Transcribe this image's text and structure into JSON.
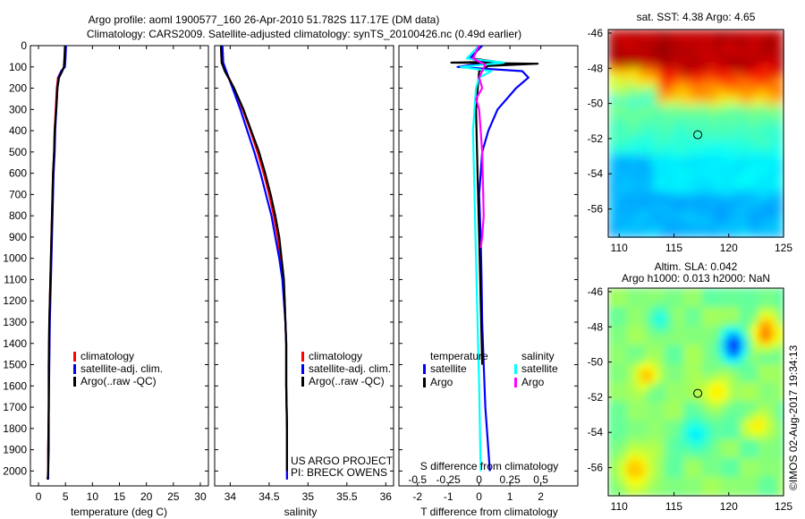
{
  "title_line1": "Argo profile: aoml 1900577_160 26-Apr-2010 51.782S 117.17E (DM data)",
  "title_line2": "Climatology: CARS2009. Satellite-adjusted climatology: synTS_20100426.nc (0.49d earlier)",
  "credit_line1": "US ARGO PROJECT",
  "credit_line2": "PI: BRECK OWENS",
  "imos_stamp": "©IMOS 02-Aug-2017 19:34:13",
  "colors": {
    "climatology": "#ff0000",
    "satellite": "#0000ff",
    "argo": "#000000",
    "salinity_satellite": "#00ffff",
    "salinity_argo": "#ff00ff"
  },
  "chart_data": [
    {
      "type": "line",
      "xlabel": "temperature (deg C)",
      "ylabel": "",
      "xlim": [
        -1.5,
        31.5
      ],
      "ylim": [
        0,
        2070
      ],
      "y_inverted": true,
      "xticks": [
        0,
        5,
        10,
        15,
        20,
        25,
        30
      ],
      "yticks": [
        0,
        100,
        200,
        300,
        400,
        500,
        600,
        700,
        800,
        900,
        1000,
        1100,
        1200,
        1300,
        1400,
        1500,
        1600,
        1700,
        1800,
        1900,
        2000
      ],
      "legend_position": "center-left",
      "series": [
        {
          "name": "climatology",
          "color": "#ff0000",
          "x": [
            5.0,
            4.9,
            4.8,
            4.2,
            3.6,
            3.4,
            3.2,
            3.0,
            2.9,
            2.7,
            2.6,
            2.5,
            2.4,
            2.3,
            2.2,
            2.1,
            2.0,
            1.9,
            1.9,
            1.8,
            1.8,
            1.7
          ],
          "y": [
            0,
            60,
            100,
            120,
            150,
            200,
            300,
            400,
            500,
            600,
            700,
            800,
            900,
            1000,
            1100,
            1200,
            1300,
            1500,
            1700,
            1900,
            2000,
            2040
          ]
        },
        {
          "name": "satellite-adj. clim.",
          "color": "#0000ff",
          "x": [
            5.1,
            5.0,
            4.9,
            4.2,
            3.7,
            3.5,
            3.3,
            3.1,
            3.0,
            2.8,
            2.7,
            2.6,
            2.5,
            2.4,
            2.3,
            2.2,
            2.1,
            2.0,
            1.9,
            1.9,
            1.8,
            1.8
          ],
          "y": [
            0,
            60,
            100,
            120,
            150,
            200,
            300,
            400,
            500,
            600,
            700,
            800,
            900,
            1000,
            1100,
            1200,
            1300,
            1500,
            1700,
            1900,
            2000,
            2040
          ]
        },
        {
          "name": "Argo(..raw -QC)",
          "color": "#000000",
          "x": [
            4.9,
            4.8,
            4.7,
            4.4,
            3.8,
            3.5,
            3.3,
            3.0,
            2.9,
            2.7,
            2.6,
            2.5,
            2.4,
            2.3,
            2.2,
            2.1,
            2.0,
            1.9,
            1.9,
            1.8,
            1.8,
            1.7
          ],
          "y": [
            0,
            60,
            100,
            120,
            150,
            200,
            300,
            400,
            500,
            600,
            700,
            800,
            900,
            1000,
            1100,
            1200,
            1300,
            1500,
            1700,
            1900,
            2000,
            2040
          ]
        }
      ]
    },
    {
      "type": "line",
      "xlabel": "salinity",
      "ylabel": "",
      "xlim": [
        33.8,
        36.1
      ],
      "ylim": [
        0,
        2070
      ],
      "y_inverted": true,
      "xticks": [
        34,
        34.5,
        35,
        35.5,
        36
      ],
      "legend_position": "center-right",
      "series": [
        {
          "name": "climatology",
          "color": "#ff0000",
          "x": [
            33.88,
            33.89,
            33.94,
            34.05,
            34.16,
            34.26,
            34.35,
            34.43,
            34.5,
            34.56,
            34.61,
            34.65,
            34.68,
            34.7,
            34.71,
            34.72,
            34.72,
            34.73,
            34.73,
            34.73
          ],
          "y": [
            0,
            80,
            120,
            200,
            300,
            400,
            500,
            600,
            700,
            800,
            900,
            1000,
            1100,
            1200,
            1300,
            1400,
            1600,
            1800,
            2000,
            2040
          ]
        },
        {
          "name": "satellite-adj. clim.",
          "color": "#0000ff",
          "x": [
            33.9,
            33.91,
            33.95,
            34.03,
            34.13,
            34.22,
            34.31,
            34.39,
            34.46,
            34.53,
            34.58,
            34.63,
            34.67,
            34.69,
            34.71,
            34.72,
            34.72,
            34.73,
            34.73,
            34.73
          ],
          "y": [
            0,
            80,
            120,
            200,
            300,
            400,
            500,
            600,
            700,
            800,
            900,
            1000,
            1100,
            1200,
            1300,
            1400,
            1600,
            1800,
            2000,
            2040
          ]
        },
        {
          "name": "Argo(..raw -QC)",
          "color": "#000000",
          "x": [
            33.88,
            33.89,
            33.93,
            34.05,
            34.17,
            34.27,
            34.37,
            34.45,
            34.52,
            34.58,
            34.63,
            34.66,
            34.69,
            34.7,
            34.71,
            34.72,
            34.72,
            34.73,
            34.73
          ],
          "y": [
            0,
            80,
            120,
            200,
            300,
            400,
            500,
            600,
            700,
            800,
            900,
            1000,
            1100,
            1200,
            1300,
            1400,
            1600,
            1800,
            2000
          ]
        }
      ]
    },
    {
      "type": "line",
      "xlabel": "T difference from climatology",
      "xlabel_top": "S difference from climatology",
      "ylabel": "",
      "xlim": [
        -2.6,
        3.2
      ],
      "ylim": [
        0,
        2070
      ],
      "y_inverted": true,
      "xticks": [
        -2,
        -1,
        0,
        1,
        2
      ],
      "xticks_s": [
        -0.5,
        -0.25,
        0,
        0.25,
        0.5
      ],
      "xticks_s_labels": [
        "-0.5",
        "-0.25",
        "0",
        "0.25",
        "0.5"
      ],
      "legend_titles": [
        "temperature",
        "salinity"
      ],
      "legend_position": "center",
      "series": [
        {
          "name": "satellite",
          "group": "temperature",
          "color": "#0000ff",
          "x": [
            0.1,
            -0.3,
            0.3,
            -0.7,
            1.4,
            1.6,
            1.2,
            0.6,
            0.3,
            0.1,
            0.0,
            0.05,
            0.08,
            0.1,
            0.15,
            0.2,
            0.3,
            0.35
          ],
          "y": [
            0,
            60,
            80,
            100,
            120,
            150,
            200,
            300,
            400,
            500,
            700,
            900,
            1100,
            1300,
            1500,
            1700,
            1900,
            2000
          ]
        },
        {
          "name": "Argo",
          "group": "temperature",
          "color": "#000000",
          "x": [
            0.0,
            -0.2,
            0.5,
            -0.9,
            1.9,
            0.3,
            0.0,
            -0.1,
            -0.05,
            0.0,
            0.05,
            0.1
          ],
          "y": [
            0,
            60,
            75,
            80,
            85,
            95,
            120,
            300,
            600,
            900,
            1200,
            1500
          ]
        },
        {
          "name": "satellite",
          "group": "salinity",
          "color": "#00ffff",
          "x": [
            0.0,
            -0.4,
            0.8,
            -0.6,
            0.4,
            0.0,
            -0.1,
            -0.2,
            -0.15,
            -0.1,
            -0.05,
            0.0,
            0.05
          ],
          "y": [
            0,
            60,
            80,
            100,
            120,
            150,
            200,
            400,
            700,
            1000,
            1300,
            1600,
            2000
          ]
        },
        {
          "name": "Argo",
          "group": "salinity",
          "color": "#ff00ff",
          "x": [
            0.0,
            -0.2,
            0.2,
            0.0,
            0.1,
            -0.1,
            0.0,
            0.1,
            0.15,
            0.1,
            0.05
          ],
          "y": [
            0,
            60,
            90,
            150,
            200,
            250,
            300,
            500,
            800,
            900,
            950
          ]
        }
      ]
    },
    {
      "type": "heatmap",
      "title": "sat. SST: 4.38 Argo: 4.65",
      "xlim": [
        109,
        125
      ],
      "ylim": [
        -57.6,
        -45.8
      ],
      "xticks": [
        110,
        115,
        120,
        125
      ],
      "yticks": [
        -46,
        -48,
        -50,
        -52,
        -54,
        -56
      ],
      "marker": {
        "lon": 117.17,
        "lat": -51.78
      }
    },
    {
      "type": "heatmap",
      "title": "Altim. SLA: 0.042",
      "subtitle": "Argo h1000: 0.013 h2000: NaN",
      "xlim": [
        109,
        125
      ],
      "ylim": [
        -57.6,
        -45.8
      ],
      "xticks": [
        110,
        115,
        120,
        125
      ],
      "yticks": [
        -46,
        -48,
        -50,
        -52,
        -54,
        -56
      ],
      "marker": {
        "lon": 117.17,
        "lat": -51.78
      }
    }
  ]
}
